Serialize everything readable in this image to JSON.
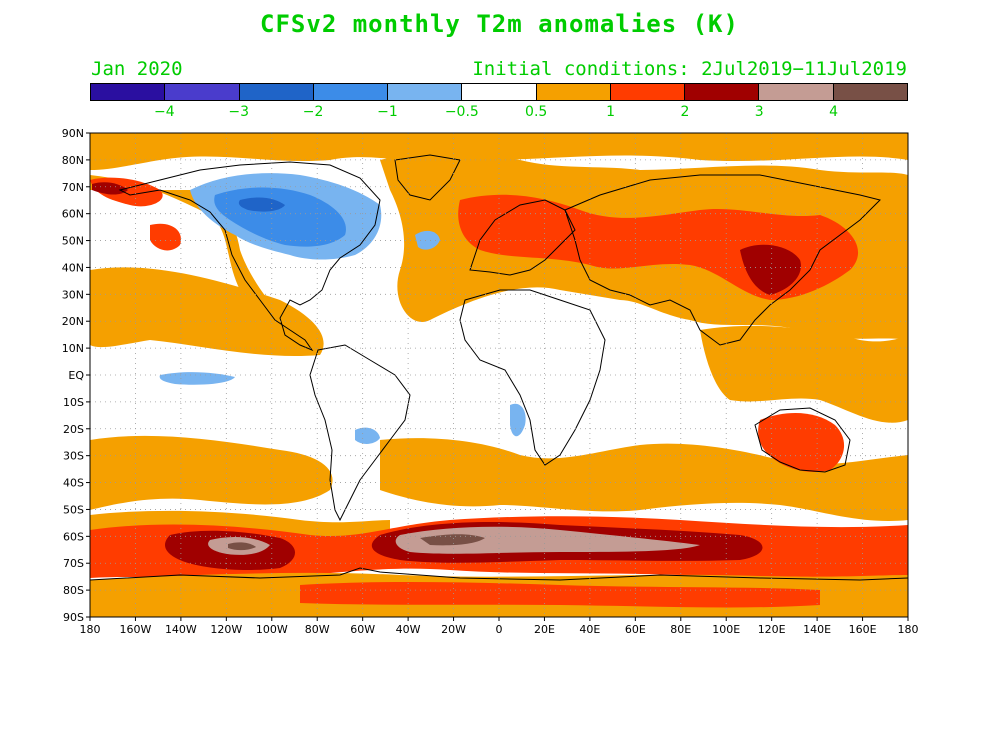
{
  "title": "CFSv2 monthly T2m anomalies (K)",
  "target_month": "Jan 2020",
  "initial_conditions": "Initial conditions: 2Jul2019−11Jul2019",
  "colorbar": {
    "colors": [
      "#2a0fa0",
      "#4a3ccc",
      "#1f64c8",
      "#3c8ce8",
      "#78b4f0",
      "#ffffff",
      "#f5a000",
      "#ff3c00",
      "#a00000",
      "#c49c94",
      "#785046"
    ],
    "labels": [
      "−4",
      "−3",
      "−2",
      "−1",
      "−0.5",
      "0.5",
      "1",
      "2",
      "3",
      "4"
    ]
  },
  "map": {
    "lat_labels": [
      "90N",
      "80N",
      "70N",
      "60N",
      "50N",
      "40N",
      "30N",
      "20N",
      "10N",
      "EQ",
      "10S",
      "20S",
      "30S",
      "40S",
      "50S",
      "60S",
      "70S",
      "80S",
      "90S"
    ],
    "lon_labels": [
      "180",
      "160W",
      "140W",
      "120W",
      "100W",
      "80W",
      "60W",
      "40W",
      "20W",
      "0",
      "20E",
      "40E",
      "60E",
      "80E",
      "100E",
      "120E",
      "140E",
      "160E",
      "180"
    ]
  }
}
